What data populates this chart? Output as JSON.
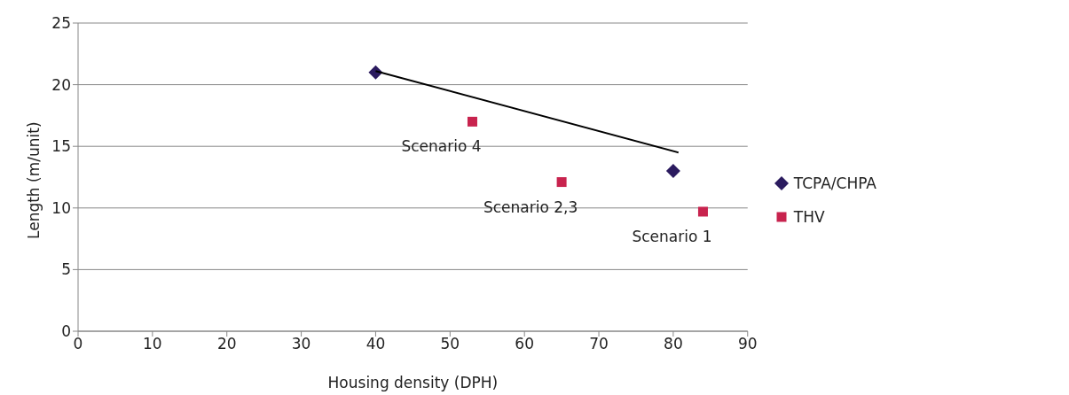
{
  "chart_data": {
    "type": "scatter",
    "xlabel": "Housing density (DPH)",
    "ylabel": "Length (m/unit)",
    "xlim": [
      0,
      90
    ],
    "xticks": [
      0,
      10,
      20,
      30,
      40,
      50,
      60,
      70,
      80,
      90
    ],
    "ylim": [
      0,
      25
    ],
    "yticks": [
      0,
      5,
      10,
      15,
      20,
      25
    ],
    "grid": "y",
    "legend": "right",
    "series": [
      {
        "name": "TCPA/CHPA",
        "color": "#2b1b5f",
        "marker": "diamond",
        "x": [
          40,
          80
        ],
        "values": [
          21,
          13
        ]
      },
      {
        "name": "THV",
        "color": "#c8234e",
        "marker": "square",
        "x": [
          53,
          65,
          84
        ],
        "values": [
          17,
          12.1,
          9.7
        ]
      },
      {
        "type": "line",
        "color": "#000000",
        "marker": "none",
        "x": [
          40,
          80.7
        ],
        "values": [
          21.1,
          14.5
        ]
      }
    ],
    "annotations": [
      {
        "text": "Scenario 4",
        "x": 53,
        "y": 17
      },
      {
        "text": "Scenario 2,3",
        "x": 65,
        "y": 12.1
      },
      {
        "text": "Scenario 1",
        "x": 84,
        "y": 9.7
      }
    ]
  }
}
